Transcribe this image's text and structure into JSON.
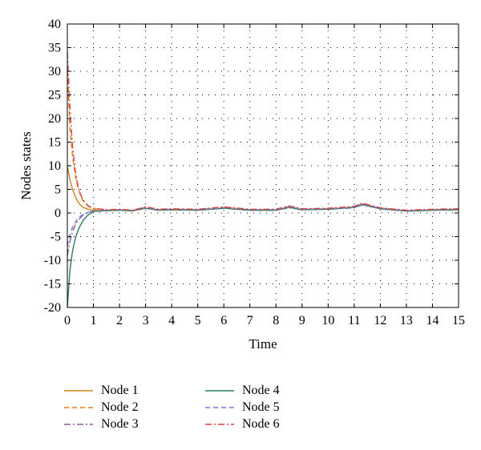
{
  "chart_data": {
    "type": "line",
    "xlabel": "Time",
    "ylabel": "Nodes states",
    "xlim": [
      0,
      15
    ],
    "ylim": [
      -20,
      40
    ],
    "xticks": [
      0,
      1,
      2,
      3,
      4,
      5,
      6,
      7,
      8,
      9,
      10,
      11,
      12,
      13,
      14,
      15
    ],
    "yticks": [
      -20,
      -15,
      -10,
      -5,
      0,
      5,
      10,
      15,
      20,
      25,
      30,
      35,
      40
    ],
    "grid": true,
    "legend_position": "bottom",
    "series": [
      {
        "name": "Node 1",
        "color": "#c8861a",
        "dash": "solid",
        "x": [
          0,
          0.1,
          0.2,
          0.3,
          0.4,
          0.5,
          0.6,
          0.8,
          1.0,
          1.5,
          2,
          2.5,
          3,
          3.5,
          4,
          5,
          6,
          7,
          8,
          8.5,
          9,
          10,
          11,
          11.3,
          12,
          13,
          14,
          15
        ],
        "y": [
          10,
          7,
          5,
          3.5,
          2.4,
          1.7,
          1.2,
          0.8,
          0.6,
          0.5,
          0.6,
          0.4,
          1.0,
          0.6,
          0.7,
          0.6,
          1.0,
          0.6,
          0.6,
          1.2,
          0.7,
          0.8,
          1.2,
          1.8,
          0.9,
          0.4,
          0.6,
          0.7
        ]
      },
      {
        "name": "Node 2",
        "color": "#e07b10",
        "dash": "6,4",
        "x": [
          0,
          0.1,
          0.2,
          0.3,
          0.4,
          0.5,
          0.6,
          0.8,
          1.0,
          1.5,
          2,
          2.5,
          3,
          3.5,
          4,
          5,
          6,
          7,
          8,
          8.5,
          9,
          10,
          11,
          11.3,
          12,
          13,
          14,
          15
        ],
        "y": [
          30,
          18,
          12,
          8,
          5.5,
          3.8,
          2.6,
          1.4,
          0.9,
          0.6,
          0.7,
          0.5,
          1.2,
          0.7,
          0.8,
          0.7,
          1.2,
          0.7,
          0.7,
          1.4,
          0.8,
          0.9,
          1.3,
          2.0,
          1.0,
          0.5,
          0.7,
          0.8
        ]
      },
      {
        "name": "Node 3",
        "color": "#8a5a9a",
        "dash": "8,3,2,3",
        "x": [
          0,
          0.1,
          0.2,
          0.3,
          0.4,
          0.5,
          0.6,
          0.8,
          1.0,
          1.5,
          2,
          2.5,
          3,
          3.5,
          4,
          5,
          6,
          7,
          8,
          8.5,
          9,
          10,
          11,
          11.3,
          12,
          13,
          14,
          15
        ],
        "y": [
          -9,
          -6,
          -4,
          -2.5,
          -1.6,
          -1,
          -0.5,
          0.1,
          0.4,
          0.5,
          0.6,
          0.5,
          1.0,
          0.6,
          0.7,
          0.6,
          1.0,
          0.6,
          0.6,
          1.1,
          0.7,
          0.8,
          1.1,
          1.7,
          0.9,
          0.4,
          0.6,
          0.7
        ]
      },
      {
        "name": "Node 4",
        "color": "#2e7d5b",
        "dash": "solid",
        "x": [
          0,
          0.05,
          0.1,
          0.2,
          0.3,
          0.4,
          0.5,
          0.6,
          0.8,
          1.0,
          1.5,
          2,
          2.5,
          3,
          3.5,
          4,
          5,
          6,
          7,
          8,
          8.5,
          9,
          10,
          11,
          11.3,
          12,
          13,
          14,
          15
        ],
        "y": [
          -20,
          -16,
          -12,
          -8,
          -5.5,
          -3.8,
          -2.6,
          -1.6,
          -0.4,
          0.3,
          0.5,
          0.6,
          0.5,
          1.0,
          0.6,
          0.7,
          0.6,
          1.0,
          0.6,
          0.6,
          1.2,
          0.7,
          0.8,
          1.2,
          1.8,
          0.9,
          0.4,
          0.6,
          0.7
        ]
      },
      {
        "name": "Node 5",
        "color": "#7b7be0",
        "dash": "6,4",
        "x": [
          0,
          0.1,
          0.2,
          0.3,
          0.4,
          0.5,
          0.6,
          0.8,
          1.0,
          1.5,
          2,
          2.5,
          3,
          3.5,
          4,
          5,
          6,
          7,
          8,
          8.5,
          9,
          10,
          11,
          11.3,
          12,
          13,
          14,
          15
        ],
        "y": [
          -7,
          -4.5,
          -3,
          -2,
          -1.2,
          -0.7,
          -0.3,
          0.2,
          0.4,
          0.6,
          0.7,
          0.6,
          1.1,
          0.7,
          0.8,
          0.7,
          1.1,
          0.7,
          0.7,
          1.3,
          0.8,
          0.9,
          1.2,
          1.9,
          1.0,
          0.5,
          0.7,
          0.8
        ]
      },
      {
        "name": "Node 6",
        "color": "#e04040",
        "dash": "8,3,2,3",
        "x": [
          0,
          0.1,
          0.2,
          0.3,
          0.4,
          0.5,
          0.6,
          0.8,
          1.0,
          1.5,
          2,
          2.5,
          3,
          3.5,
          4,
          5,
          6,
          7,
          8,
          8.5,
          9,
          10,
          11,
          11.3,
          12,
          13,
          14,
          15
        ],
        "y": [
          34,
          22,
          14,
          9,
          6,
          4,
          2.8,
          1.5,
          1.0,
          0.7,
          0.8,
          0.6,
          1.3,
          0.8,
          0.9,
          0.8,
          1.3,
          0.8,
          0.8,
          1.5,
          0.9,
          1.0,
          1.4,
          2.1,
          1.1,
          0.6,
          0.8,
          0.9
        ]
      }
    ]
  }
}
